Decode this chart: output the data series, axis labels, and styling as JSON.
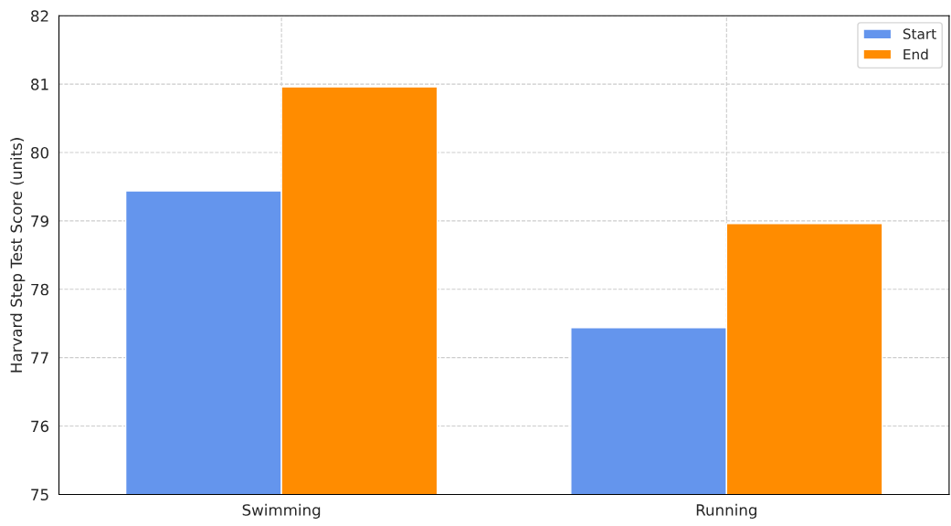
{
  "chart_data": {
    "type": "bar",
    "ylabel": "Harvard Step Test Score (units)",
    "categories": [
      "Swimming",
      "Running"
    ],
    "series": [
      {
        "name": "Start",
        "color": "#6495ed",
        "values": [
          79.44,
          77.44
        ]
      },
      {
        "name": "End",
        "color": "#ff8c00",
        "values": [
          80.96,
          78.96
        ]
      }
    ],
    "ylim": [
      75,
      82
    ],
    "yticks": [
      75,
      76,
      77,
      78,
      79,
      80,
      81,
      82
    ],
    "grid": true,
    "legend": "top right"
  }
}
